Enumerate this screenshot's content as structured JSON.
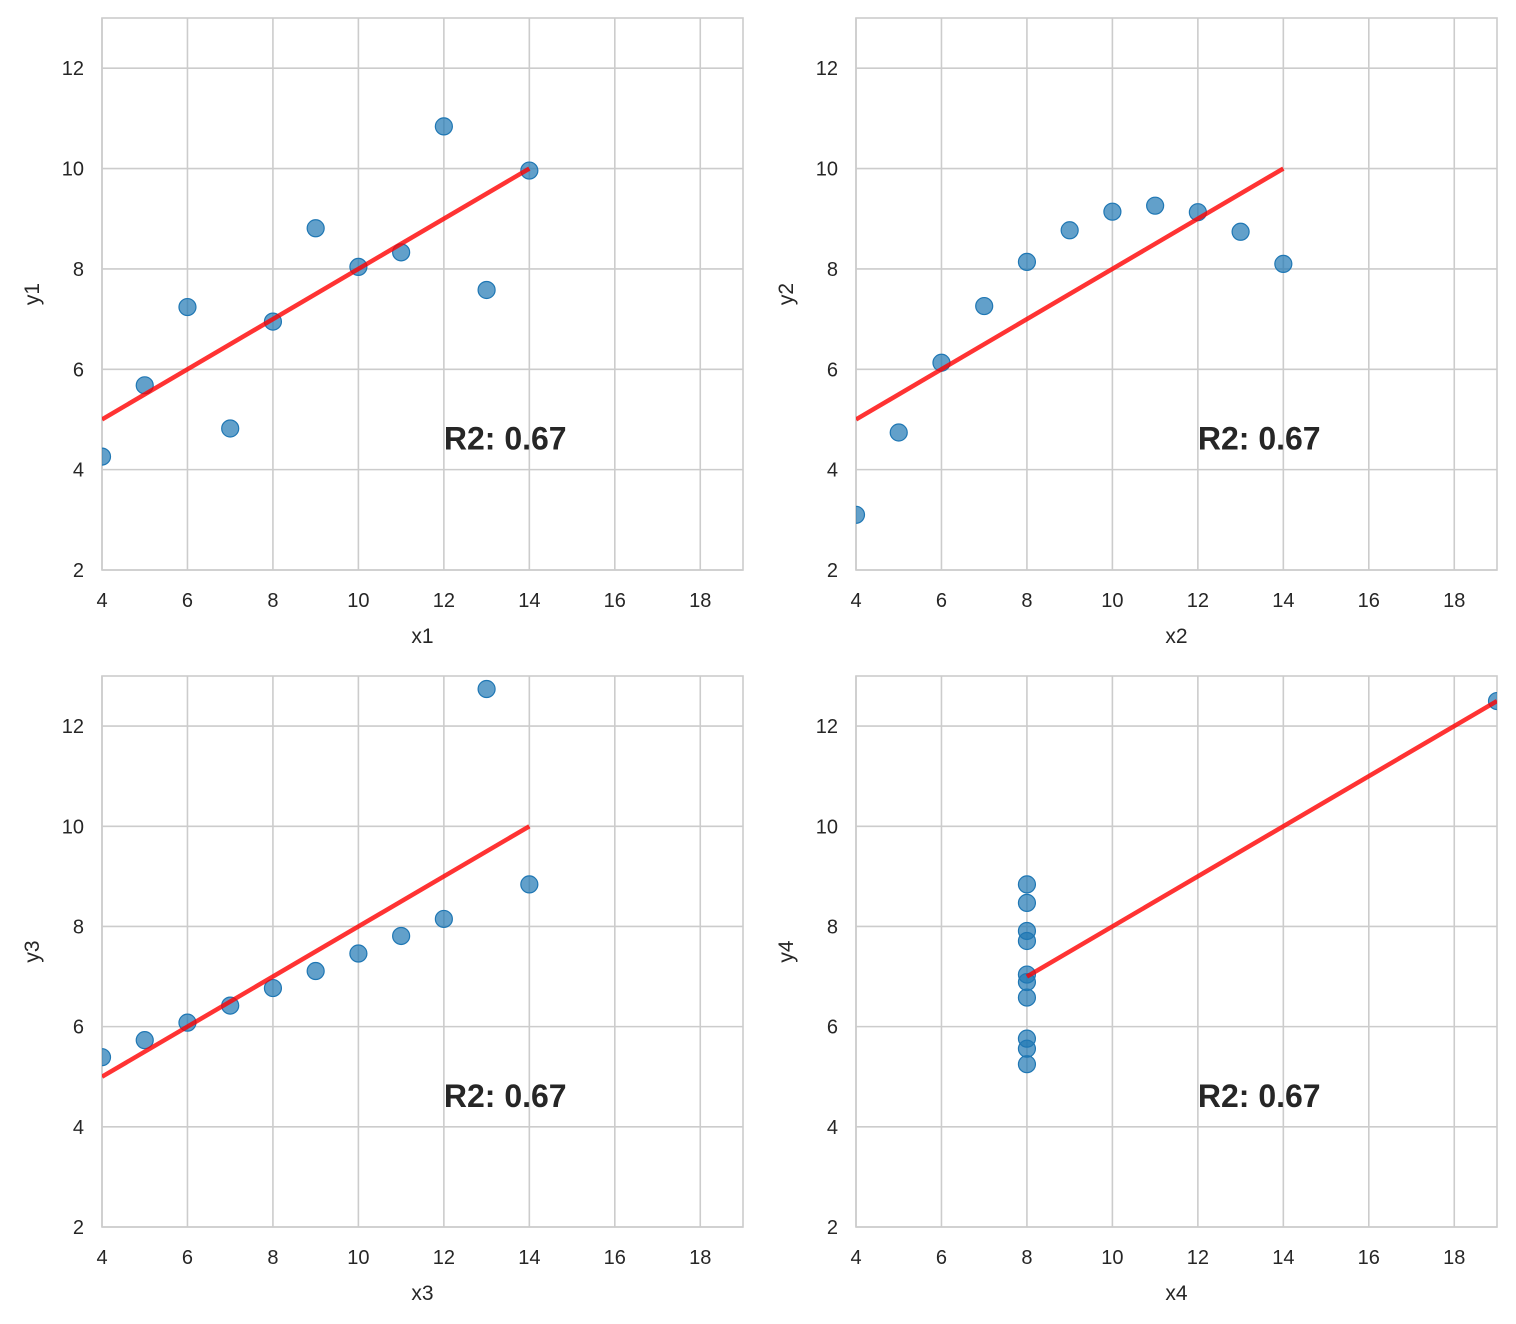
{
  "chart_data": [
    {
      "type": "scatter",
      "xlabel": "x1",
      "ylabel": "y1",
      "xlim": [
        4,
        19
      ],
      "ylim": [
        2,
        13
      ],
      "xticks": [
        4,
        6,
        8,
        10,
        12,
        14,
        16,
        18
      ],
      "yticks": [
        2,
        4,
        6,
        8,
        10,
        12
      ],
      "grid": true,
      "x": [
        10,
        8,
        13,
        9,
        11,
        14,
        6,
        4,
        12,
        7,
        5
      ],
      "y": [
        8.04,
        6.95,
        7.58,
        8.81,
        8.33,
        9.96,
        7.24,
        4.26,
        10.84,
        4.82,
        5.68
      ],
      "fit": {
        "intercept": 3.0,
        "slope": 0.5,
        "x_range": [
          4,
          14
        ]
      },
      "annotation": {
        "text": "R2: 0.67",
        "x": 12,
        "y": 4.4
      }
    },
    {
      "type": "scatter",
      "xlabel": "x2",
      "ylabel": "y2",
      "xlim": [
        4,
        19
      ],
      "ylim": [
        2,
        13
      ],
      "xticks": [
        4,
        6,
        8,
        10,
        12,
        14,
        16,
        18
      ],
      "yticks": [
        2,
        4,
        6,
        8,
        10,
        12
      ],
      "grid": true,
      "x": [
        10,
        8,
        13,
        9,
        11,
        14,
        6,
        4,
        12,
        7,
        5
      ],
      "y": [
        9.14,
        8.14,
        8.74,
        8.77,
        9.26,
        8.1,
        6.13,
        3.1,
        9.13,
        7.26,
        4.74
      ],
      "fit": {
        "intercept": 3.0,
        "slope": 0.5,
        "x_range": [
          4,
          14
        ]
      },
      "annotation": {
        "text": "R2: 0.67",
        "x": 12,
        "y": 4.4
      }
    },
    {
      "type": "scatter",
      "xlabel": "x3",
      "ylabel": "y3",
      "xlim": [
        4,
        19
      ],
      "ylim": [
        2,
        13
      ],
      "xticks": [
        4,
        6,
        8,
        10,
        12,
        14,
        16,
        18
      ],
      "yticks": [
        2,
        4,
        6,
        8,
        10,
        12
      ],
      "grid": true,
      "x": [
        10,
        8,
        13,
        9,
        11,
        14,
        6,
        4,
        12,
        7,
        5
      ],
      "y": [
        7.46,
        6.77,
        12.74,
        7.11,
        7.81,
        8.84,
        6.08,
        5.39,
        8.15,
        6.42,
        5.73
      ],
      "fit": {
        "intercept": 3.0,
        "slope": 0.5,
        "x_range": [
          4,
          14
        ]
      },
      "annotation": {
        "text": "R2: 0.67",
        "x": 12,
        "y": 4.4
      }
    },
    {
      "type": "scatter",
      "xlabel": "x4",
      "ylabel": "y4",
      "xlim": [
        4,
        19
      ],
      "ylim": [
        2,
        13
      ],
      "xticks": [
        4,
        6,
        8,
        10,
        12,
        14,
        16,
        18
      ],
      "yticks": [
        2,
        4,
        6,
        8,
        10,
        12
      ],
      "grid": true,
      "x": [
        8,
        8,
        8,
        8,
        8,
        8,
        8,
        19,
        8,
        8,
        8
      ],
      "y": [
        6.58,
        5.76,
        7.71,
        8.84,
        8.47,
        7.04,
        5.25,
        12.5,
        5.56,
        7.91,
        6.89
      ],
      "fit": {
        "intercept": 3.0,
        "slope": 0.5,
        "x_range": [
          8,
          19
        ]
      },
      "annotation": {
        "text": "R2: 0.67",
        "x": 12,
        "y": 4.4
      }
    }
  ],
  "colors": {
    "points": "#1f77b4",
    "fit_line": "#ff0000",
    "grid": "#cccccc",
    "text": "#262626"
  }
}
